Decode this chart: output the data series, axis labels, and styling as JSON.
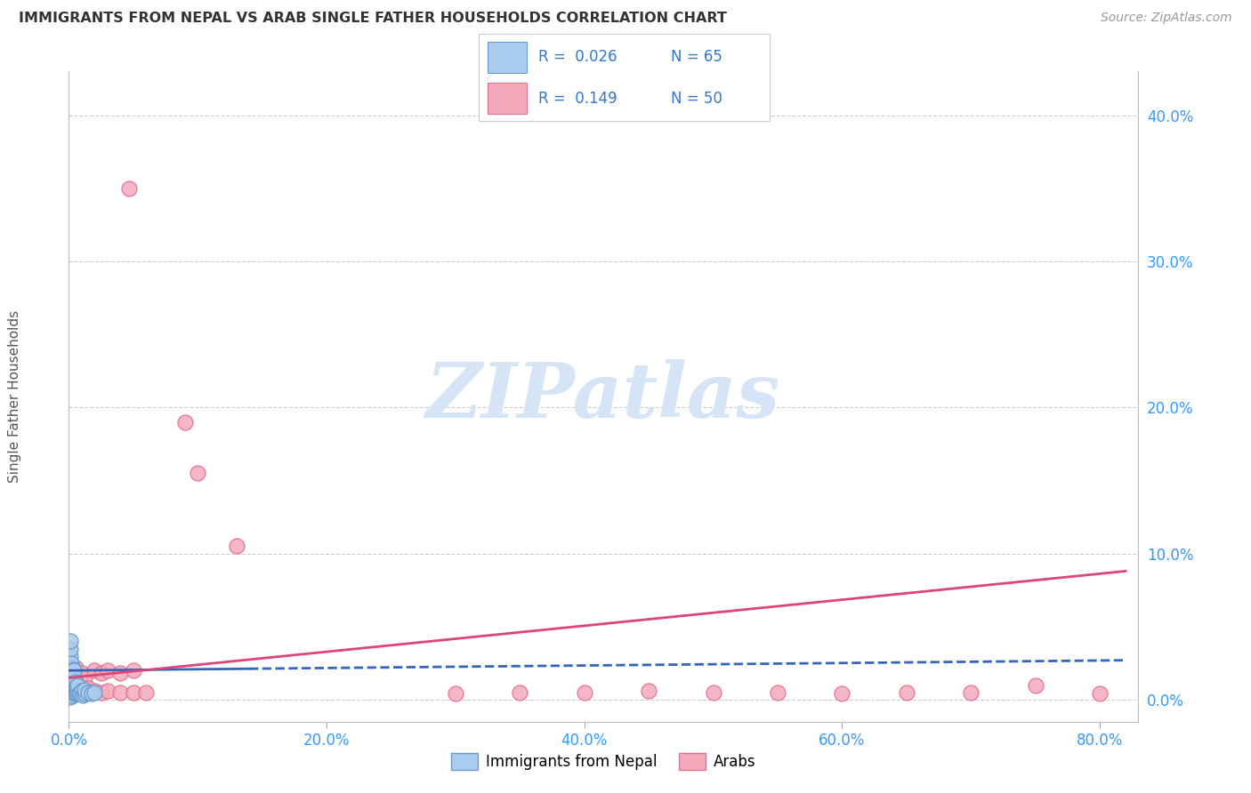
{
  "title": "IMMIGRANTS FROM NEPAL VS ARAB SINGLE FATHER HOUSEHOLDS CORRELATION CHART",
  "source": "Source: ZipAtlas.com",
  "ylabel": "Single Father Households",
  "xlim": [
    0.0,
    0.83
  ],
  "ylim": [
    -0.015,
    0.43
  ],
  "xtick_vals": [
    0.0,
    0.2,
    0.4,
    0.6,
    0.8
  ],
  "xtick_labels": [
    "0.0%",
    "20.0%",
    "40.0%",
    "60.0%",
    "80.0%"
  ],
  "ytick_vals": [
    0.0,
    0.1,
    0.2,
    0.3,
    0.4
  ],
  "ytick_labels": [
    "0.0%",
    "10.0%",
    "20.0%",
    "30.0%",
    "40.0%"
  ],
  "legend_r1": "0.026",
  "legend_n1": "65",
  "legend_r2": "0.149",
  "legend_n2": "50",
  "legend_label1": "Immigrants from Nepal",
  "legend_label2": "Arabs",
  "nepal_color": "#aaccee",
  "arab_color": "#f5aabb",
  "nepal_edge": "#6699cc",
  "arab_edge": "#e07090",
  "trend_nepal_color": "#3366bb",
  "trend_arab_color": "#dd4477",
  "watermark_color": "#d5e5f5",
  "nepal_pts_x": [
    0.001,
    0.001,
    0.001,
    0.001,
    0.001,
    0.001,
    0.001,
    0.001,
    0.001,
    0.001,
    0.002,
    0.002,
    0.002,
    0.002,
    0.002,
    0.002,
    0.002,
    0.002,
    0.002,
    0.003,
    0.003,
    0.003,
    0.003,
    0.003,
    0.003,
    0.004,
    0.004,
    0.004,
    0.004,
    0.005,
    0.005,
    0.005,
    0.006,
    0.006,
    0.007,
    0.007,
    0.008,
    0.009,
    0.01,
    0.011,
    0.012,
    0.012,
    0.015,
    0.018,
    0.02
  ],
  "nepal_pts_y": [
    0.005,
    0.01,
    0.015,
    0.02,
    0.025,
    0.03,
    0.035,
    0.04,
    0.002,
    0.008,
    0.004,
    0.007,
    0.01,
    0.013,
    0.016,
    0.019,
    0.022,
    0.025,
    0.003,
    0.005,
    0.008,
    0.011,
    0.014,
    0.017,
    0.021,
    0.006,
    0.01,
    0.015,
    0.02,
    0.004,
    0.008,
    0.012,
    0.005,
    0.009,
    0.006,
    0.01,
    0.004,
    0.005,
    0.006,
    0.003,
    0.004,
    0.007,
    0.005,
    0.004,
    0.005
  ],
  "arab_pts_x": [
    0.001,
    0.001,
    0.001,
    0.001,
    0.001,
    0.002,
    0.002,
    0.002,
    0.002,
    0.003,
    0.003,
    0.003,
    0.003,
    0.004,
    0.004,
    0.004,
    0.005,
    0.005,
    0.005,
    0.006,
    0.006,
    0.007,
    0.007,
    0.008,
    0.008,
    0.01,
    0.01,
    0.012,
    0.012,
    0.015,
    0.02,
    0.02,
    0.025,
    0.025,
    0.03,
    0.03,
    0.04,
    0.04,
    0.05,
    0.05,
    0.06,
    0.3,
    0.35,
    0.4,
    0.45,
    0.5,
    0.55,
    0.6,
    0.65,
    0.7,
    0.75,
    0.8,
    0.047,
    0.09,
    0.1,
    0.13
  ],
  "arab_pts_y": [
    0.005,
    0.01,
    0.015,
    0.02,
    0.025,
    0.004,
    0.008,
    0.012,
    0.018,
    0.003,
    0.007,
    0.012,
    0.02,
    0.004,
    0.01,
    0.018,
    0.005,
    0.012,
    0.022,
    0.006,
    0.015,
    0.004,
    0.012,
    0.005,
    0.015,
    0.006,
    0.018,
    0.005,
    0.015,
    0.008,
    0.006,
    0.02,
    0.005,
    0.018,
    0.006,
    0.02,
    0.005,
    0.018,
    0.005,
    0.02,
    0.005,
    0.004,
    0.005,
    0.005,
    0.006,
    0.005,
    0.005,
    0.004,
    0.005,
    0.005,
    0.01,
    0.004,
    0.35,
    0.19,
    0.155,
    0.105
  ]
}
